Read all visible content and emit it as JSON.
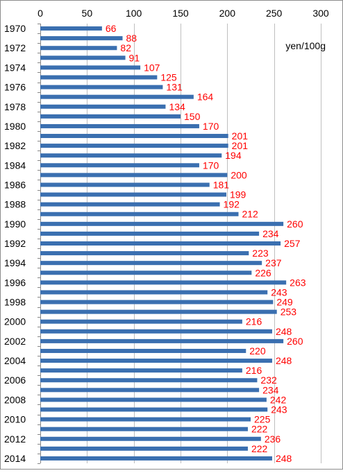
{
  "chart_data": {
    "type": "bar",
    "orientation": "horizontal",
    "unit": "yen/100g",
    "xlim": [
      0,
      300
    ],
    "x_ticks": [
      0,
      50,
      100,
      150,
      200,
      250,
      300
    ],
    "x_axis_position": "top",
    "grid": "vertical",
    "categories": [
      1970,
      1971,
      1972,
      1973,
      1974,
      1975,
      1976,
      1977,
      1978,
      1979,
      1980,
      1981,
      1982,
      1983,
      1984,
      1985,
      1986,
      1987,
      1988,
      1989,
      1990,
      1991,
      1992,
      1993,
      1994,
      1995,
      1996,
      1997,
      1998,
      1999,
      2000,
      2001,
      2002,
      2003,
      2004,
      2005,
      2006,
      2007,
      2008,
      2009,
      2010,
      2011,
      2012,
      2013,
      2014
    ],
    "category_labels": [
      "1970",
      "",
      "1972",
      "",
      "1974",
      "",
      "1976",
      "",
      "1978",
      "",
      "1980",
      "",
      "1982",
      "",
      "1984",
      "",
      "1986",
      "",
      "1988",
      "",
      "1990",
      "",
      "1992",
      "",
      "1994",
      "",
      "1996",
      "",
      "1998",
      "",
      "2000",
      "",
      "2002",
      "",
      "2004",
      "",
      "2006",
      "",
      "2008",
      "",
      "2010",
      "",
      "2012",
      "",
      "2014"
    ],
    "values": [
      66,
      88,
      82,
      91,
      107,
      125,
      131,
      164,
      134,
      150,
      170,
      201,
      201,
      194,
      170,
      200,
      181,
      199,
      192,
      212,
      260,
      234,
      257,
      223,
      237,
      226,
      263,
      243,
      249,
      253,
      216,
      248,
      260,
      220,
      248,
      216,
      232,
      234,
      242,
      243,
      225,
      222,
      236,
      222,
      248
    ],
    "bar_color": "#3a6fb0",
    "label_color": "#ff0000"
  }
}
